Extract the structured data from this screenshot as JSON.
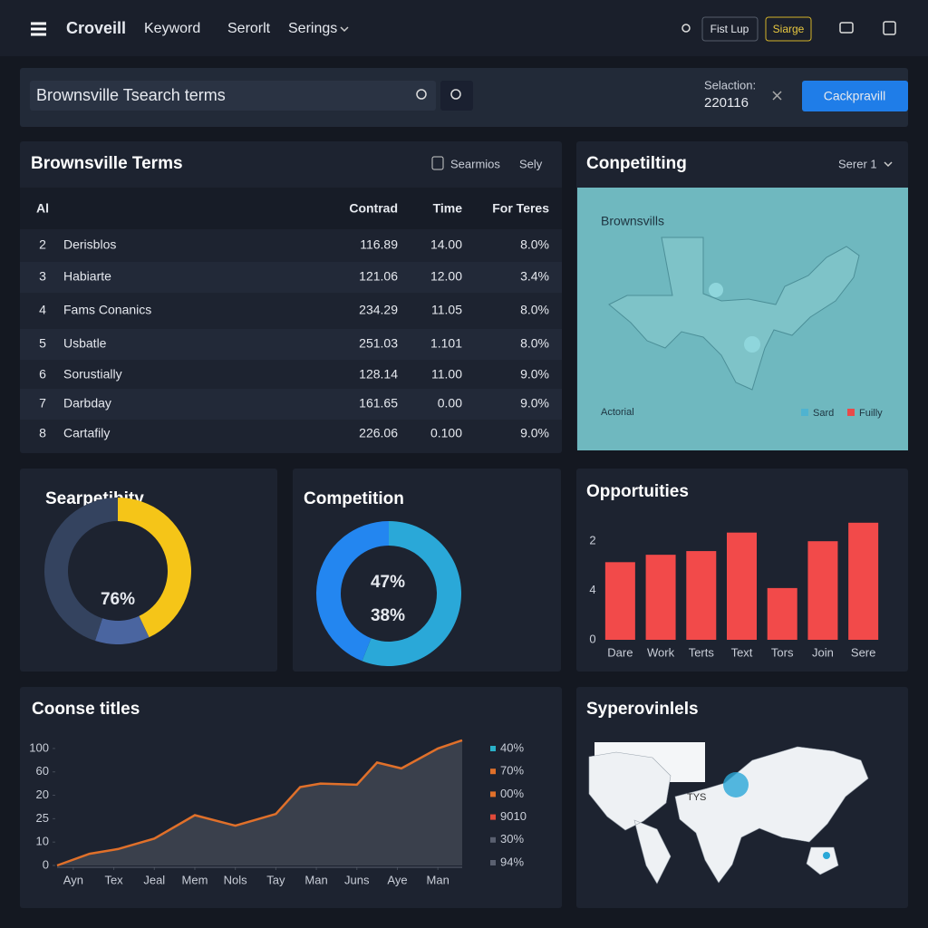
{
  "nav": {
    "brand": "Croveill",
    "links": [
      "Keyword",
      "Serorlt",
      "Serings"
    ],
    "button1": "Fist Lup",
    "button2": "Siarge"
  },
  "search": {
    "query": "Brownsville Tsearch terms",
    "selection_label": "Selaction:",
    "selection_value": "220116",
    "button": "Cackpravill"
  },
  "terms_table": {
    "title": "Brownsville Terms",
    "action1": "Searmios",
    "action2": "Sely",
    "headers": [
      "Al",
      "Contrad",
      "Time",
      "For Teres"
    ],
    "rows": [
      [
        "2",
        "Derisblos",
        "116.89",
        "14.00",
        "8.0%"
      ],
      [
        "3",
        "Habiarte",
        "121.06",
        "12.00",
        "3.4%"
      ],
      [
        "4",
        "Fams Conanics",
        "234.29",
        "11.05",
        "8.0%"
      ],
      [
        "5",
        "Usbatle",
        "251.03",
        "1.101",
        "8.0%"
      ],
      [
        "6",
        "Sorustially",
        "128.14",
        "11.00",
        "9.0%"
      ],
      [
        "7",
        "Darbday",
        "161.65",
        "0.00",
        "9.0%"
      ],
      [
        "8",
        "Cartafily",
        "226.06",
        "0.100",
        "9.0%"
      ]
    ]
  },
  "map_panel": {
    "title": "Conpetilting",
    "dropdown": "Serer 1",
    "region_label": "Brownsvills",
    "footer": "Actorial",
    "legend": [
      {
        "name": "Sard",
        "color": "#4fb3d0"
      },
      {
        "name": "Fuilly",
        "color": "#e84a4a"
      }
    ]
  },
  "searchability": {
    "type": "pie",
    "title": "Searpetibity",
    "center_label": "76%",
    "values": [
      43,
      12,
      45
    ],
    "colors": [
      "#f5c518",
      "#4a65a0",
      "#34435f"
    ]
  },
  "competition": {
    "type": "pie",
    "title": "Competition",
    "center_labels": [
      "47%",
      "38%"
    ],
    "values": [
      56,
      44
    ],
    "colors": [
      "#2aa8d8",
      "#2386f0"
    ]
  },
  "opportunities": {
    "type": "bar",
    "title": "Opportuities",
    "categories": [
      "Dare",
      "Work",
      "Terts",
      "Text",
      "Tors",
      "Join",
      "Sere"
    ],
    "values": [
      63,
      69,
      72,
      87,
      42,
      80,
      95
    ],
    "color": "#f24a4a",
    "ylim": [
      0,
      100
    ],
    "yticks": [
      {
        "value": 80,
        "label": "2"
      },
      {
        "value": 40,
        "label": "4"
      },
      0
    ]
  },
  "trend": {
    "type": "line",
    "title": "Coonse titles",
    "x": [
      -0.4,
      0.4,
      1.1,
      2.0,
      3.0,
      4.0,
      5.0,
      5.6,
      6.1,
      7.0,
      7.5,
      8.1,
      9.0,
      9.6
    ],
    "values": [
      0,
      10,
      14,
      23,
      43,
      34,
      44,
      67,
      70,
      69,
      88,
      83,
      100,
      107
    ],
    "color": "#e0702a",
    "xlim": [
      -0.4,
      9.6
    ],
    "xticks": [
      {
        "value": 0,
        "label": "Ayn"
      },
      {
        "value": 1,
        "label": "Tex"
      },
      {
        "value": 2,
        "label": "Jeal"
      },
      {
        "value": 3,
        "label": "Mem"
      },
      {
        "value": 4,
        "label": "Nols"
      },
      {
        "value": 5,
        "label": "Tay"
      },
      {
        "value": 6,
        "label": "Man"
      },
      {
        "value": 7,
        "label": "Juns"
      },
      {
        "value": 8,
        "label": "Aye"
      },
      {
        "value": 9,
        "label": "Man"
      }
    ],
    "ylim": [
      0,
      110
    ],
    "yticks": [
      100,
      {
        "value": 80,
        "label": "60"
      },
      {
        "value": 60,
        "label": "20"
      },
      {
        "value": 40,
        "label": "25"
      },
      {
        "value": 20,
        "label": "10"
      },
      0
    ],
    "legend": [
      {
        "label": "40%",
        "color": "#2ab0c8"
      },
      {
        "label": "70%",
        "color": "#e0702a"
      },
      {
        "label": "00%",
        "color": "#e0702a"
      },
      {
        "label": "9010",
        "color": "#e04a3a"
      },
      {
        "label": "30%",
        "color": "#5a6070"
      },
      {
        "label": "94%",
        "color": "#5a6070"
      }
    ]
  },
  "world_map": {
    "title": "Syperovinlels",
    "label": "TYS"
  }
}
